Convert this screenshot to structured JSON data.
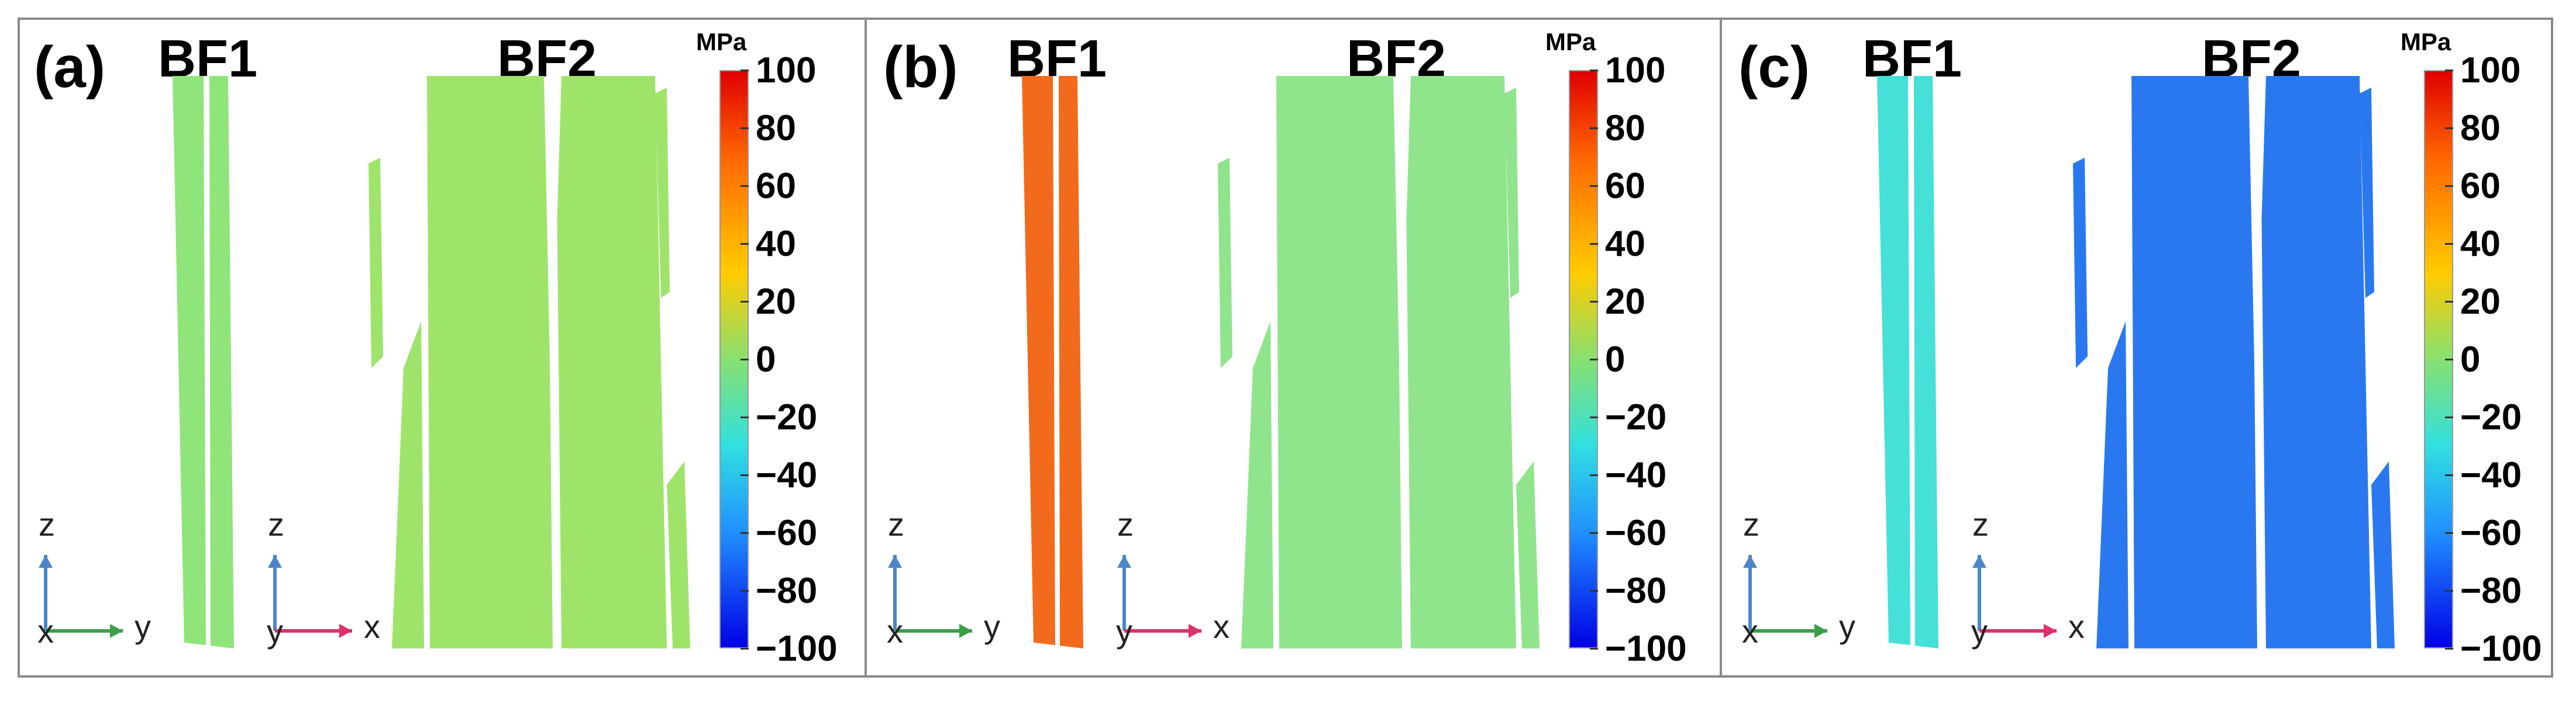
{
  "panels": [
    {
      "label": "(a)",
      "bf1": "BF1",
      "bf2": "BF2",
      "unit": "MPa",
      "bf1_color": "#8fe47a",
      "bf2_color": "#9ee46a",
      "axes_left": {
        "vertical": "z",
        "horizontal": "y",
        "origin": "x"
      },
      "axes_right": {
        "vertical": "z",
        "horizontal": "x",
        "origin": "y"
      }
    },
    {
      "label": "(b)",
      "bf1": "BF1",
      "bf2": "BF2",
      "unit": "MPa",
      "bf1_color": "#f26a1c",
      "bf2_color": "#8fe48c",
      "axes_left": {
        "vertical": "z",
        "horizontal": "y",
        "origin": "x"
      },
      "axes_right": {
        "vertical": "z",
        "horizontal": "x",
        "origin": "y"
      }
    },
    {
      "label": "(c)",
      "bf1": "BF1",
      "bf2": "BF2",
      "unit": "MPa",
      "bf1_color": "#45e0d8",
      "bf2_color": "#2a78f0",
      "axes_left": {
        "vertical": "z",
        "horizontal": "y",
        "origin": "x"
      },
      "axes_right": {
        "vertical": "z",
        "horizontal": "x",
        "origin": "y"
      }
    }
  ],
  "colorbar": {
    "ticks": [
      "100",
      "80",
      "60",
      "40",
      "20",
      "0",
      "−20",
      "−40",
      "−60",
      "−80",
      "−100"
    ],
    "min": -100,
    "max": 100
  },
  "colors": {
    "axis_vertical": "#4a86c8",
    "axis_y": "#3aa048",
    "axis_x": "#e0306a",
    "origin": "#c02040"
  }
}
